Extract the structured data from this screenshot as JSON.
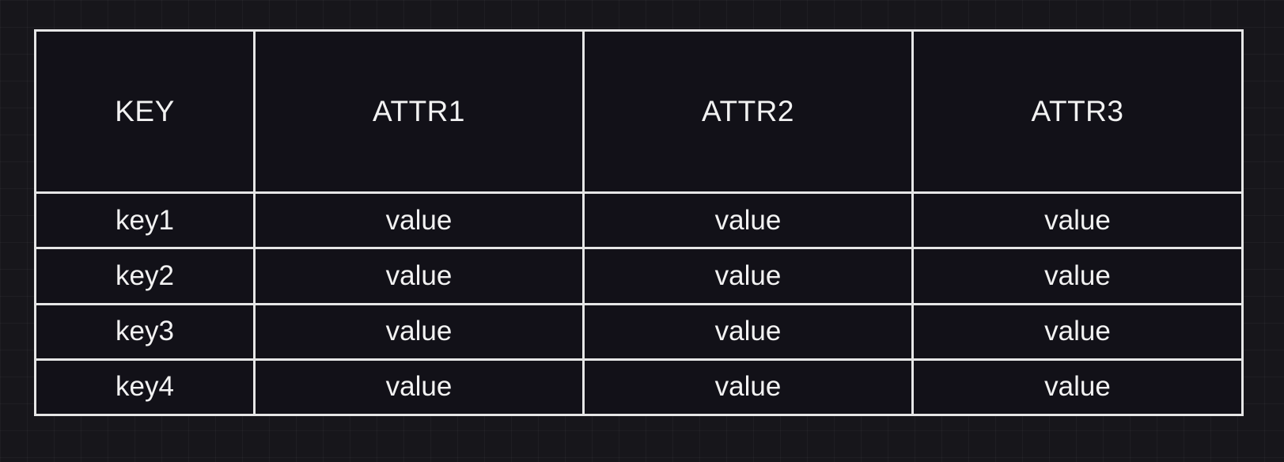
{
  "table": {
    "headers": [
      "KEY",
      "ATTR1",
      "ATTR2",
      "ATTR3"
    ],
    "rows": [
      [
        "key1",
        "value",
        "value",
        "value"
      ],
      [
        "key2",
        "value",
        "value",
        "value"
      ],
      [
        "key3",
        "value",
        "value",
        "value"
      ],
      [
        "key4",
        "value",
        "value",
        "value"
      ]
    ]
  },
  "colors": {
    "background": "#17161b",
    "cell_fill": "#121118",
    "border": "#e6e6e6",
    "text": "#f2f2f2"
  }
}
